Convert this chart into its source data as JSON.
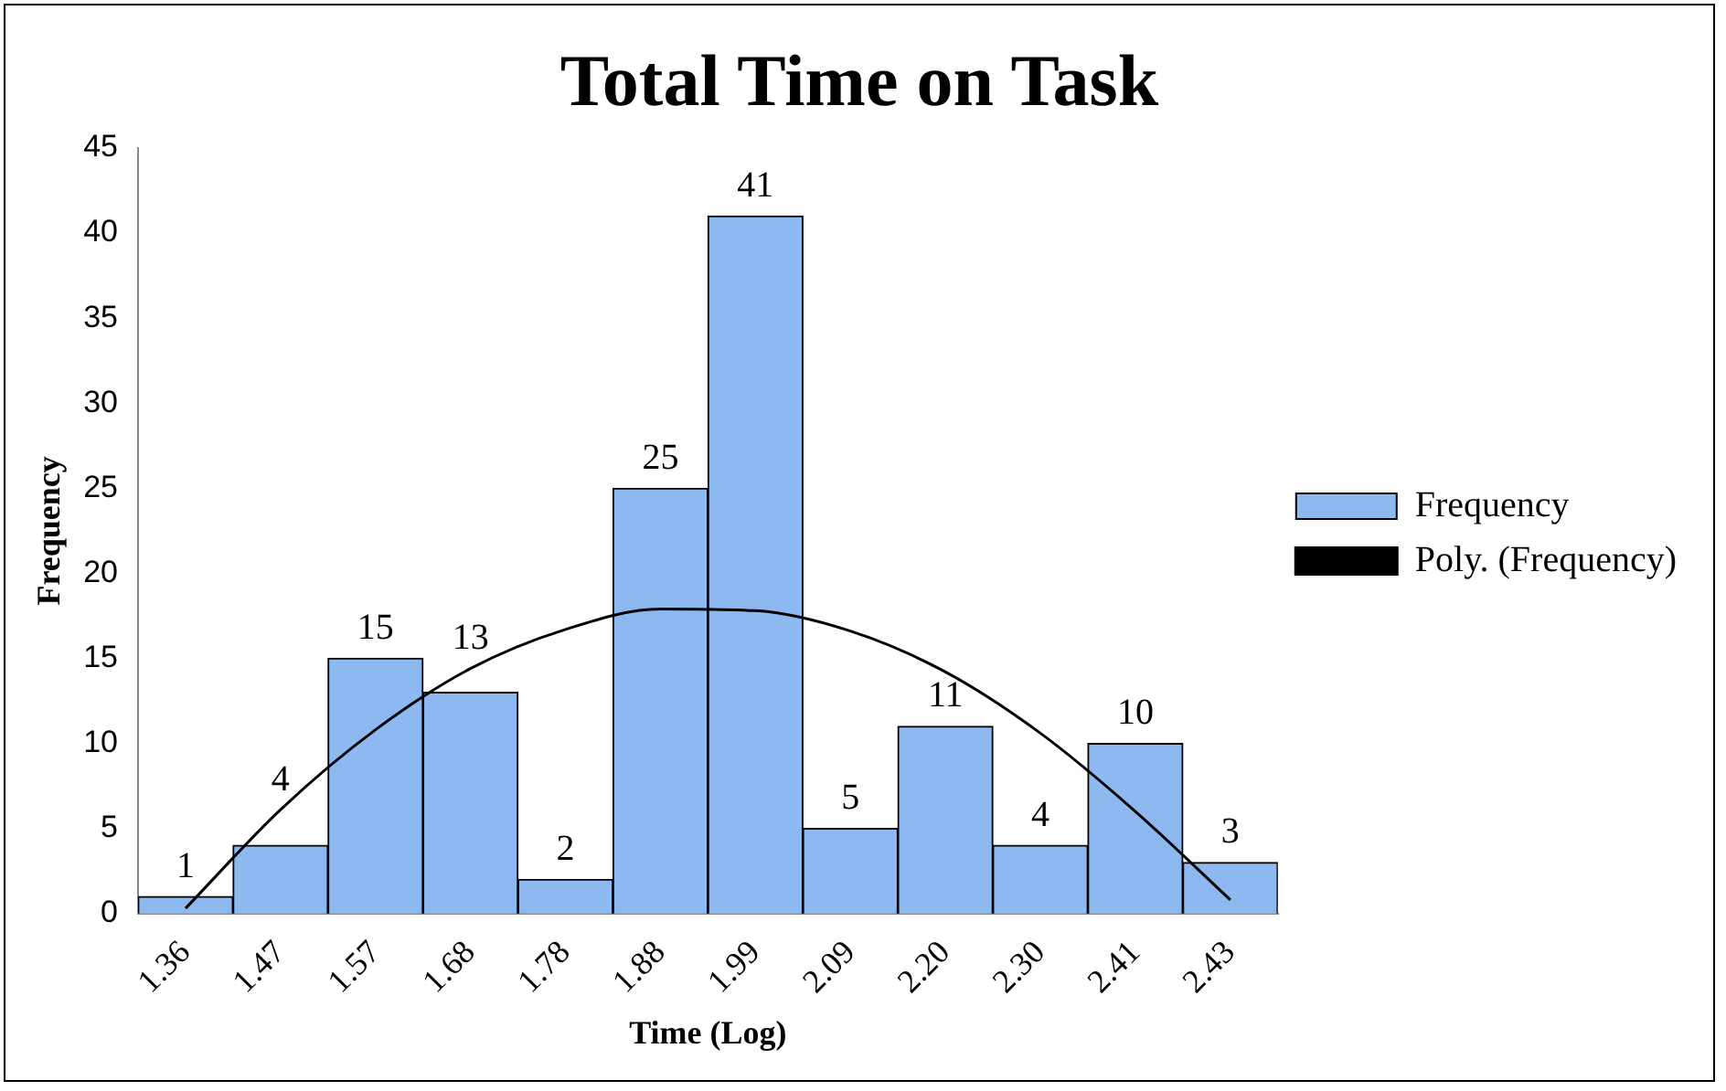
{
  "chart_data": {
    "type": "bar",
    "title": "Total Time on Task",
    "xlabel": "Time (Log)",
    "ylabel": "Frequency",
    "categories": [
      "1.36",
      "1.47",
      "1.57",
      "1.68",
      "1.78",
      "1.88",
      "1.99",
      "2.09",
      "2.20",
      "2.30",
      "2.41",
      "2.43"
    ],
    "series": [
      {
        "name": "Frequency",
        "color": "#8db8f0",
        "values": [
          1,
          4,
          15,
          13,
          2,
          25,
          41,
          5,
          11,
          4,
          10,
          3
        ],
        "value_labels": [
          "1",
          "4",
          "15",
          "13",
          "2",
          "25",
          "41",
          "5",
          "11",
          "4",
          "10",
          "3"
        ]
      },
      {
        "name": "Poly. (Frequency)",
        "type": "line",
        "color": "#000000",
        "values": [
          0.3,
          6.1,
          10.8,
          14.4,
          16.7,
          17.9,
          17.8,
          16.6,
          14.2,
          10.6,
          6.0,
          0.8
        ]
      }
    ],
    "ylim": [
      0,
      45
    ],
    "yticks": [
      0,
      5,
      10,
      15,
      20,
      25,
      30,
      35,
      40,
      45
    ],
    "grid": false,
    "legend": "right",
    "marker": "none"
  }
}
